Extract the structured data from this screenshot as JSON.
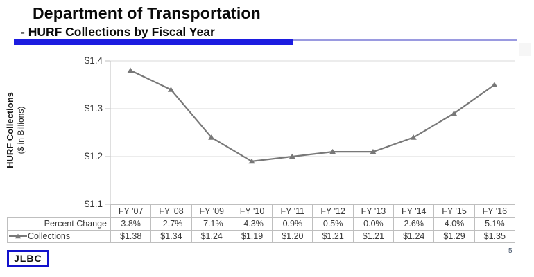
{
  "header": {
    "title": "Department of Transportation",
    "subtitle": "- HURF Collections by Fiscal Year"
  },
  "chart_data": {
    "type": "line",
    "categories": [
      "FY '07",
      "FY '08",
      "FY '09",
      "FY '10",
      "FY '11",
      "FY '12",
      "FY '13",
      "FY '14",
      "FY '15",
      "FY '16"
    ],
    "series": [
      {
        "name": "Collections",
        "marker": "triangle-up",
        "values": [
          1.38,
          1.34,
          1.24,
          1.19,
          1.2,
          1.21,
          1.21,
          1.24,
          1.29,
          1.35
        ]
      }
    ],
    "ylabel_line1": "HURF Collections",
    "ylabel_line2": "($ in Billions)",
    "ylim": [
      1.1,
      1.4
    ],
    "grid": true,
    "legend_position": "data-table-row-label",
    "yticks": [
      {
        "value": 1.4,
        "label": "$1.4"
      },
      {
        "value": 1.3,
        "label": "$1.3"
      },
      {
        "value": 1.2,
        "label": "$1.2"
      },
      {
        "value": 1.1,
        "label": "$1.1"
      }
    ],
    "data_table": {
      "rows": [
        {
          "label": "Percent Change",
          "legend_key": false,
          "values": [
            "3.8%",
            "-2.7%",
            "-7.1%",
            "-4.3%",
            "0.9%",
            "0.5%",
            "0.0%",
            "2.6%",
            "4.0%",
            "5.1%"
          ]
        },
        {
          "label": "Collections",
          "legend_key": true,
          "values": [
            "$1.38",
            "$1.34",
            "$1.24",
            "$1.19",
            "$1.20",
            "$1.21",
            "$1.21",
            "$1.24",
            "$1.29",
            "$1.35"
          ]
        }
      ]
    }
  },
  "footer": {
    "logo_text": "JLBC",
    "page_number": "5"
  },
  "colors": {
    "accent_bar": "#1c1ce0",
    "accent_thin_line": "#9a9ae0",
    "series_line": "#787878",
    "gridline": "#d9d9d9",
    "axis": "#bfbfbf",
    "table_border": "#bfbfbf",
    "logo_border": "#1212cc",
    "page_number": "#44546a"
  }
}
